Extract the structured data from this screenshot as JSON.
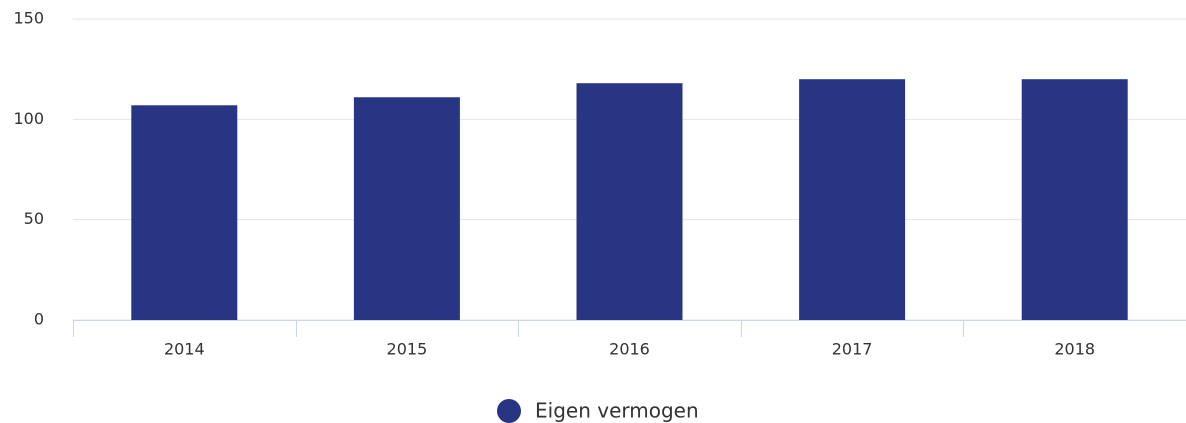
{
  "chart_data": {
    "type": "bar",
    "categories": [
      "2014",
      "2015",
      "2016",
      "2017",
      "2018"
    ],
    "series": [
      {
        "name": "Eigen vermogen",
        "color": "#283583",
        "values": [
          107,
          111,
          118,
          120,
          120
        ]
      }
    ],
    "ylim": [
      0,
      150
    ],
    "yticks": [
      0,
      50,
      100,
      150
    ],
    "grid": true,
    "legend": "bottom"
  }
}
